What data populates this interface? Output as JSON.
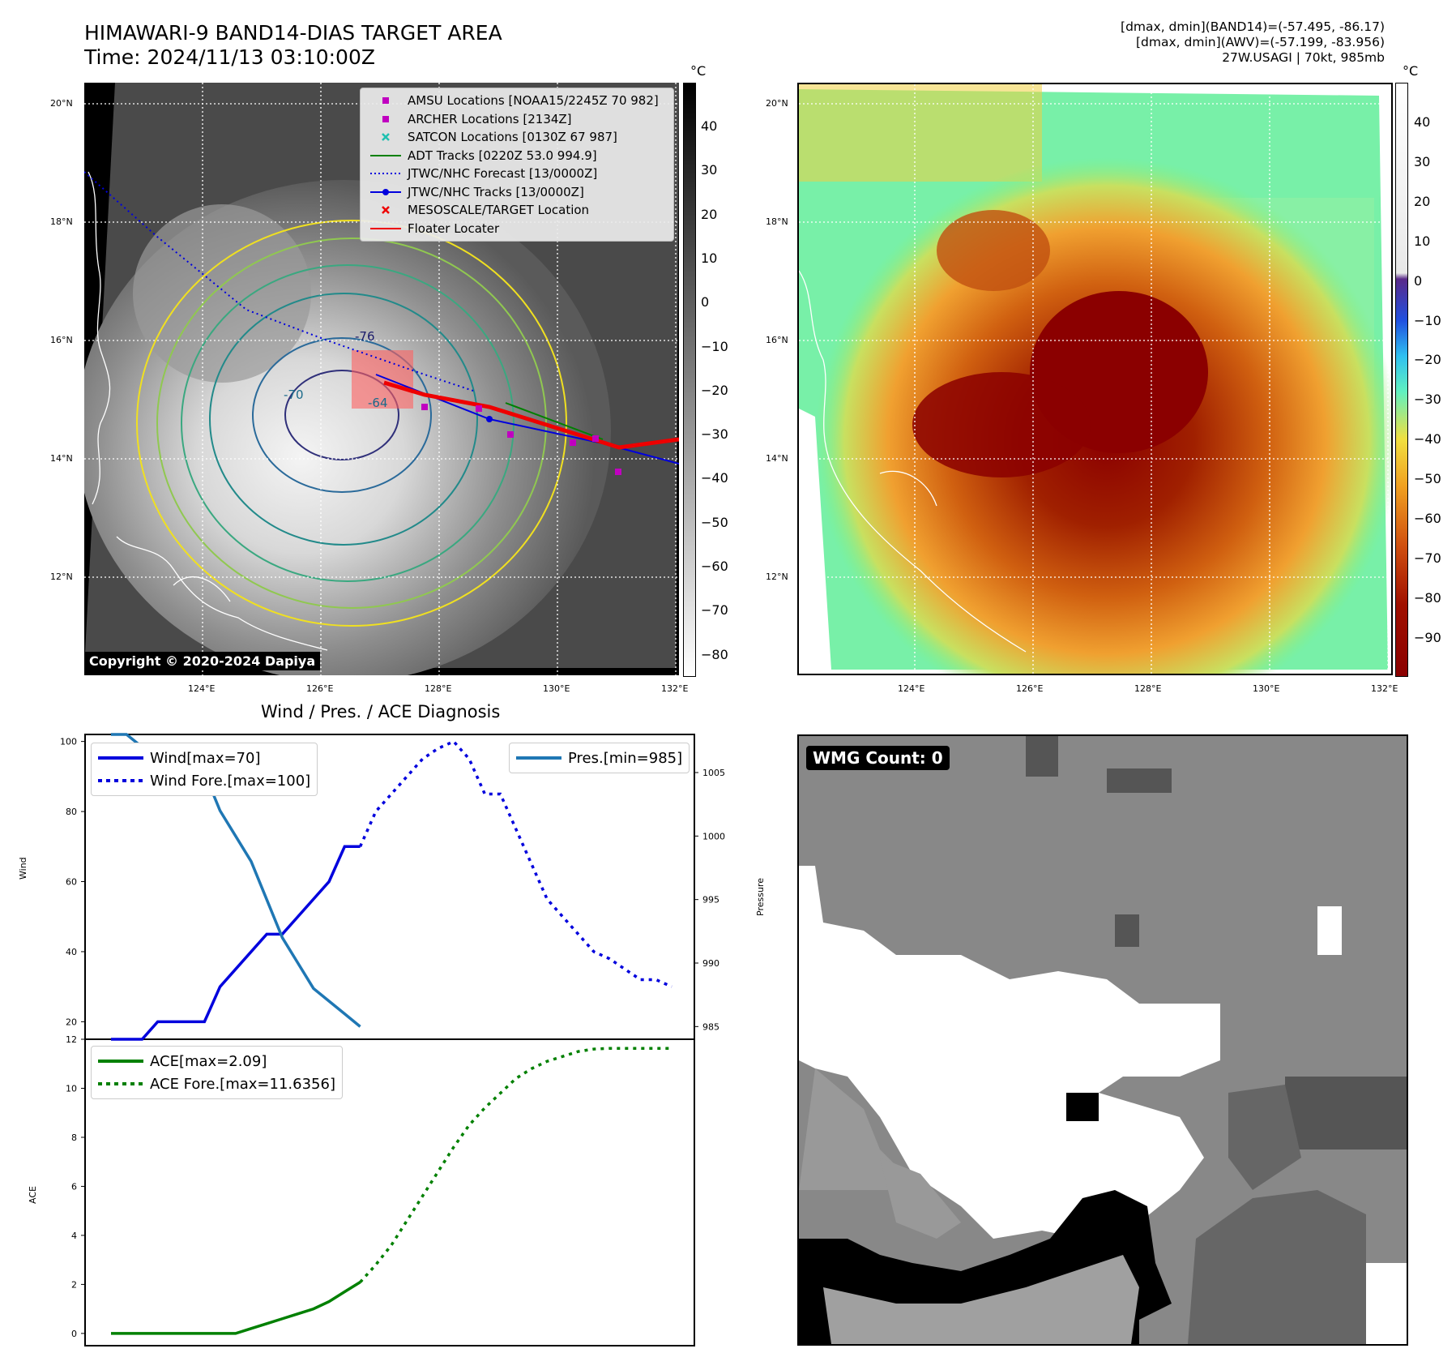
{
  "header": {
    "title_line1": "HIMAWARI-9 BAND14-DIAS TARGET AREA",
    "title_line2": "Time: 2024/11/13 03:10:00Z",
    "info_line1": "[dmax, dmin](BAND14)=(-57.495, -86.17)",
    "info_line2": "[dmax, dmin](AWV)=(-57.199, -83.956)",
    "info_line3": "27W.USAGI | 70kt, 985mb"
  },
  "map": {
    "lat_labels": [
      "20°N",
      "18°N",
      "16°N",
      "14°N",
      "12°N"
    ],
    "lon_labels": [
      "124°E",
      "126°E",
      "128°E",
      "130°E",
      "132°E"
    ],
    "legend": [
      {
        "label": "AMSU Locations [NOAA15/2245Z 70 982]",
        "color": "#c000c0",
        "marker": "square"
      },
      {
        "label": "ARCHER Locations [2134Z]",
        "color": "#c000c0",
        "marker": "square"
      },
      {
        "label": "SATCON Locations [0130Z 67 987]",
        "color": "#20c0b0",
        "marker": "x"
      },
      {
        "label": "ADT Tracks [0220Z 53.0 994.9]",
        "color": "#008000",
        "marker": "line"
      },
      {
        "label": "JTWC/NHC Forecast [13/0000Z]",
        "color": "#0000dd",
        "marker": "dotted"
      },
      {
        "label": "JTWC/NHC Tracks [13/0000Z]",
        "color": "#0000dd",
        "marker": "line-dot"
      },
      {
        "label": "MESOSCALE/TARGET Location",
        "color": "#ee0000",
        "marker": "x"
      },
      {
        "label": "Floater Locater",
        "color": "#ee0000",
        "marker": "line"
      }
    ],
    "copyright": "Copyright © 2020-2024 Dapiya",
    "contour_labels": [
      "-76",
      "-64",
      "-70"
    ]
  },
  "colorbars": {
    "unit": "°C",
    "gray_ticks": [
      "40",
      "30",
      "20",
      "10",
      "0",
      "−10",
      "−20",
      "−30",
      "−40",
      "−50",
      "−60",
      "−70",
      "−80"
    ],
    "color_ticks": [
      "40",
      "30",
      "20",
      "10",
      "0",
      "−10",
      "−20",
      "−30",
      "−40",
      "−50",
      "−60",
      "−70",
      "−80",
      "−90"
    ]
  },
  "diag": {
    "title": "Wind / Pres. / ACE Diagnosis",
    "wind_ylabel": "Wind",
    "pres_ylabel": "Pressure",
    "ace_ylabel": "ACE",
    "wind_legend": [
      "Wind[max=70]",
      "Wind Fore.[max=100]"
    ],
    "pres_legend": "Pres.[min=985]",
    "ace_legend": [
      "ACE[max=2.09]",
      "ACE Fore.[max=11.6356]"
    ],
    "wind_ticks": [
      "100",
      "80",
      "60",
      "40",
      "20"
    ],
    "pres_ticks": [
      "1005",
      "1000",
      "995",
      "990",
      "985"
    ],
    "ace_ticks": [
      "12",
      "10",
      "8",
      "6",
      "4",
      "2",
      "0"
    ]
  },
  "wmg": {
    "label": "WMG Count: 0"
  },
  "chart_data": [
    {
      "type": "line",
      "title": "Wind / Pres. / ACE Diagnosis",
      "ylabel": "Wind",
      "ylim": [
        15,
        102
      ],
      "x": [
        0,
        1,
        2,
        3,
        4,
        5,
        6,
        7,
        8,
        9,
        10,
        11,
        12,
        13,
        14,
        15,
        16
      ],
      "series": [
        {
          "name": "Wind[max=70]",
          "style": "solid",
          "color": "#0000dd",
          "x": [
            0,
            1,
            2,
            3,
            4,
            5,
            6,
            7,
            8,
            9,
            10,
            11,
            12,
            13,
            14,
            15,
            16
          ],
          "values": [
            15,
            15,
            15,
            20,
            20,
            20,
            20,
            30,
            35,
            40,
            45,
            45,
            50,
            55,
            60,
            70,
            70
          ]
        },
        {
          "name": "Wind Fore.[max=100]",
          "style": "dotted",
          "color": "#0000dd",
          "x": [
            16,
            17,
            18,
            19,
            20,
            21,
            22,
            23,
            24,
            25,
            26,
            27,
            28,
            29,
            30,
            31,
            32,
            33,
            34,
            35,
            36
          ],
          "values": [
            70,
            80,
            85,
            90,
            95,
            98,
            100,
            95,
            85,
            85,
            75,
            65,
            55,
            50,
            45,
            40,
            38,
            35,
            32,
            32,
            30
          ]
        }
      ]
    },
    {
      "type": "line",
      "ylabel": "Pressure",
      "ylim": [
        984,
        1008
      ],
      "series": [
        {
          "name": "Pres.[min=985]",
          "style": "solid",
          "color": "#1f77b4",
          "x": [
            0,
            1,
            2,
            3,
            4,
            5,
            6,
            7,
            8,
            9,
            10,
            11,
            12,
            13,
            14,
            15,
            16
          ],
          "values": [
            1008,
            1008,
            1007,
            1007,
            1006,
            1006,
            1005,
            1002,
            1000,
            998,
            995,
            992,
            990,
            988,
            987,
            986,
            985
          ]
        }
      ]
    },
    {
      "type": "line",
      "ylabel": "ACE",
      "ylim": [
        -0.5,
        12
      ],
      "series": [
        {
          "name": "ACE[max=2.09]",
          "style": "solid",
          "color": "#008000",
          "x": [
            0,
            2,
            4,
            6,
            7,
            8,
            9,
            10,
            11,
            12,
            13,
            14,
            15,
            16
          ],
          "values": [
            0,
            0,
            0,
            0,
            0,
            0,
            0.2,
            0.4,
            0.6,
            0.8,
            1.0,
            1.3,
            1.7,
            2.09
          ]
        },
        {
          "name": "ACE Fore.[max=11.6356]",
          "style": "dotted",
          "color": "#008000",
          "x": [
            16,
            17,
            18,
            19,
            20,
            21,
            22,
            23,
            24,
            25,
            26,
            27,
            28,
            29,
            30,
            31,
            32,
            33,
            34,
            35,
            36
          ],
          "values": [
            2.09,
            2.8,
            3.6,
            4.6,
            5.6,
            6.6,
            7.6,
            8.5,
            9.2,
            9.8,
            10.4,
            10.8,
            11.1,
            11.3,
            11.5,
            11.6,
            11.63,
            11.63,
            11.63,
            11.63,
            11.63
          ]
        }
      ]
    }
  ]
}
